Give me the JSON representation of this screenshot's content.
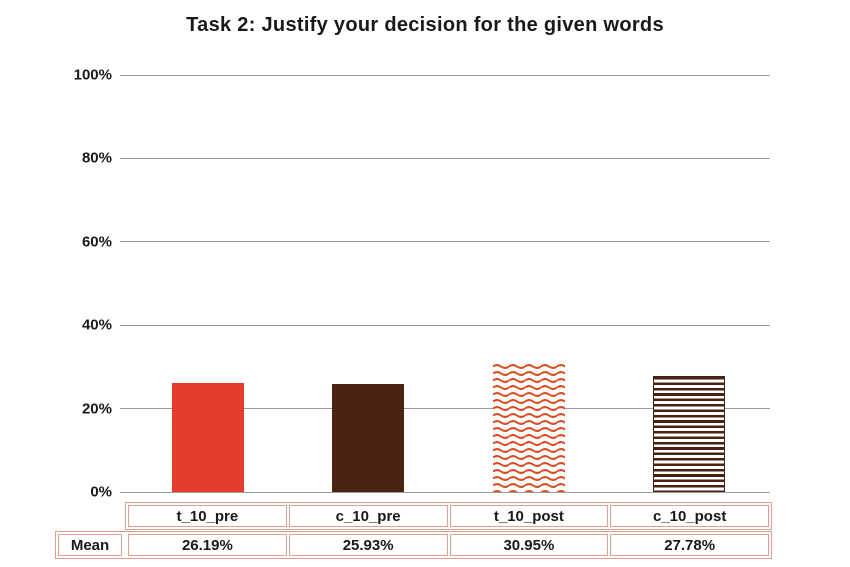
{
  "chart_data": {
    "type": "bar",
    "title": "Task 2: Justify your decision for the given words",
    "categories": [
      "t_10_pre",
      "c_10_pre",
      "t_10_post",
      "c_10_post"
    ],
    "values": [
      26.19,
      25.93,
      30.95,
      27.78
    ],
    "value_labels": [
      "26.19%",
      "25.93%",
      "30.95%",
      "27.78%"
    ],
    "row_label": "Mean",
    "ylim": [
      0,
      100
    ],
    "ytick_labels": [
      "100%",
      "80%",
      "60%",
      "40%",
      "20%",
      "0%"
    ],
    "grid": true,
    "legend": false,
    "bar_styles": [
      {
        "pattern": "solid",
        "color": "#e43b2b"
      },
      {
        "pattern": "solid",
        "color": "#4a2212"
      },
      {
        "pattern": "wave",
        "color": "#dd4a21"
      },
      {
        "pattern": "hstripes",
        "color": "#4a2212"
      }
    ],
    "colors": {
      "grid": "#9b9b9b",
      "table_border": "#dca291",
      "text": "#191919",
      "background": "#ffffff"
    }
  }
}
